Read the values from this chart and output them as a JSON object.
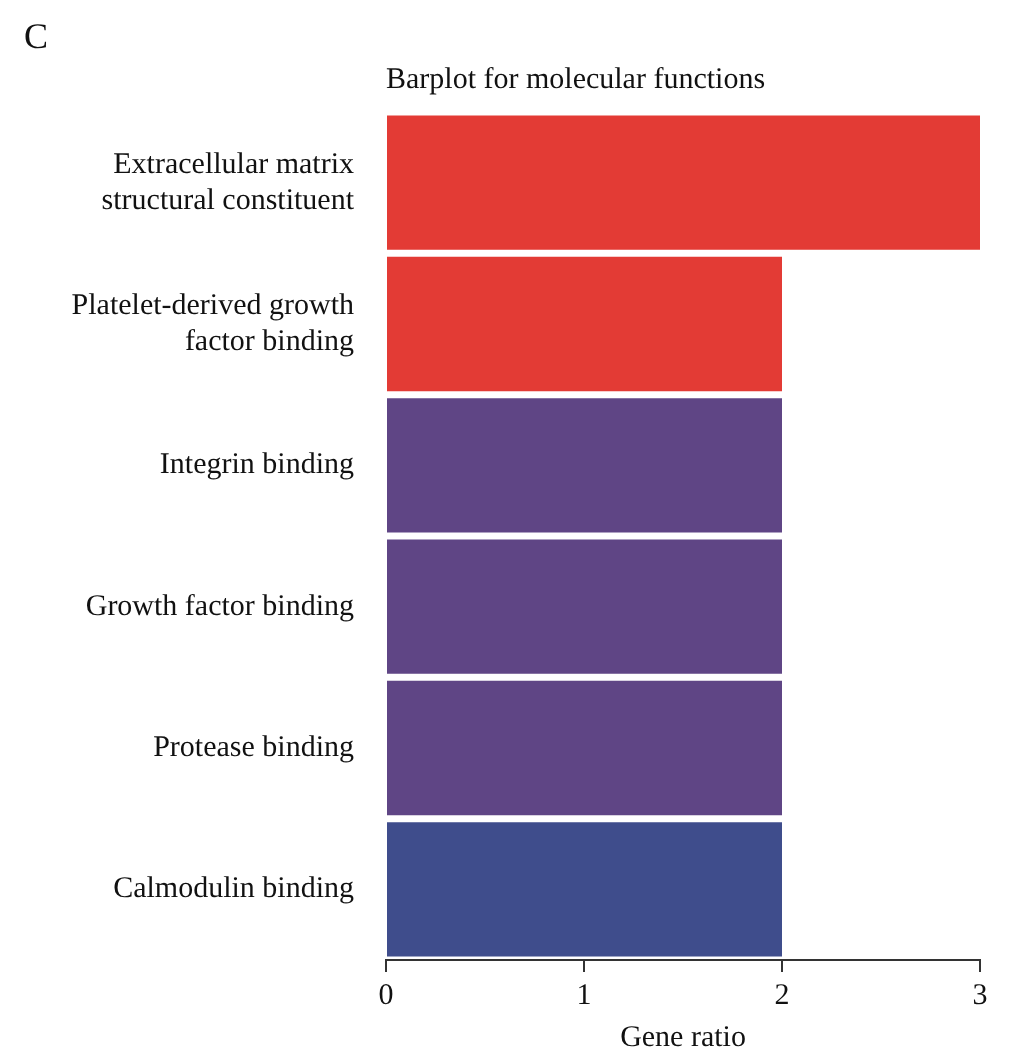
{
  "chart_data": {
    "type": "bar",
    "orientation": "horizontal",
    "title": "Barplot for molecular functions",
    "xlabel": "Gene ratio",
    "annotations": [
      "C"
    ],
    "categories": [
      "Extracellular matrix structural constituent",
      "Platelet-derived growth factor binding",
      "Integrin binding",
      "Growth factor binding",
      "Protease binding",
      "Calmodulin binding"
    ],
    "values": [
      3,
      2,
      2,
      2,
      2,
      2
    ],
    "colors": [
      "#e33b35",
      "#e33b35",
      "#5f4585",
      "#5f4585",
      "#5f4585",
      "#3f4d8c"
    ],
    "xlim": [
      0,
      3
    ],
    "xticks": [
      0,
      1,
      2,
      3
    ],
    "grid": false,
    "legend": false
  }
}
